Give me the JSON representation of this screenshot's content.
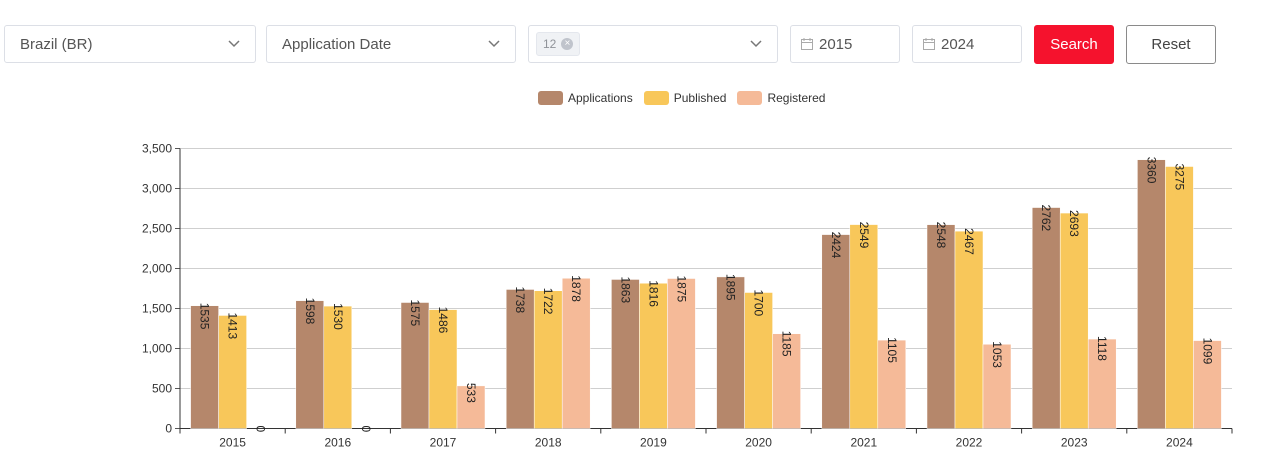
{
  "filters": {
    "country": "Brazil (BR)",
    "date_type": "Application Date",
    "multi_tag": "12",
    "start_year": "2015",
    "end_year": "2024"
  },
  "buttons": {
    "search": "Search",
    "reset": "Reset"
  },
  "colors": {
    "applications": "#b5876b",
    "published": "#f8c75a",
    "registered": "#f5ba98",
    "search_button": "#f5122d"
  },
  "chart_data": {
    "type": "bar",
    "categories": [
      "2015",
      "2016",
      "2017",
      "2018",
      "2019",
      "2020",
      "2021",
      "2022",
      "2023",
      "2024"
    ],
    "series": [
      {
        "name": "Applications",
        "values": [
          1535,
          1598,
          1575,
          1738,
          1863,
          1895,
          2424,
          2548,
          2762,
          3360
        ]
      },
      {
        "name": "Published",
        "values": [
          1413,
          1530,
          1486,
          1722,
          1816,
          1700,
          2549,
          2467,
          2693,
          3275
        ]
      },
      {
        "name": "Registered",
        "values": [
          0,
          0,
          533,
          1878,
          1875,
          1185,
          1105,
          1053,
          1118,
          1099
        ]
      }
    ],
    "ylim": [
      0,
      3500
    ],
    "yticks": [
      0,
      500,
      1000,
      1500,
      2000,
      2500,
      3000,
      3500
    ],
    "ytick_labels": [
      "0",
      "500",
      "1,000",
      "1,500",
      "2,000",
      "2,500",
      "3,000",
      "3,500"
    ],
    "legend_position": "top-center",
    "grid": true,
    "title": "",
    "xlabel": "",
    "ylabel": ""
  }
}
